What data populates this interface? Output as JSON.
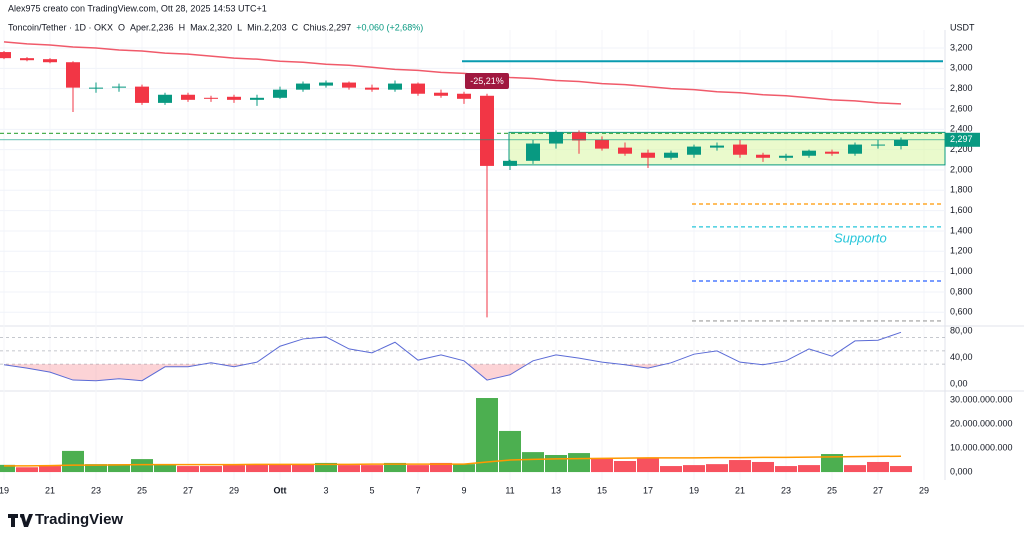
{
  "header": {
    "credit": "Alex975 creato con TradingView.com, Ott 28, 2025 14:53 UTC+1",
    "symbol": "Toncoin/Tether · 1D · OKX",
    "ohlc": [
      "O",
      "Aper.2,236",
      "H",
      "Max.2,320",
      "L",
      "Min.2,203",
      "C",
      "Chius.2,297"
    ],
    "change": "+0,060 (+2,68%)",
    "currency": "USDT",
    "brand": "TradingView"
  },
  "chart_data": [
    {
      "type": "candlestick",
      "categories": [
        "19",
        null,
        "21",
        null,
        "23",
        null,
        "25",
        null,
        "27",
        null,
        "29",
        null,
        "Ott",
        null,
        "3",
        null,
        "5",
        null,
        "7",
        null,
        "9",
        null,
        "11",
        null,
        "13",
        null,
        "15",
        null,
        "17",
        null,
        "19",
        null,
        "21",
        null,
        "23",
        null,
        "25",
        null,
        "27",
        null,
        "29"
      ],
      "open": [
        3.16,
        3.1,
        3.09,
        3.06,
        2.8,
        2.81,
        2.82,
        2.66,
        2.74,
        2.71,
        2.72,
        2.69,
        2.71,
        2.79,
        2.83,
        2.86,
        2.81,
        2.79,
        2.85,
        2.76,
        2.75,
        2.73,
        2.04,
        2.09,
        2.26,
        2.37,
        2.3,
        2.22,
        2.17,
        2.12,
        2.15,
        2.22,
        2.25,
        2.15,
        2.12,
        2.14,
        2.18,
        2.16,
        2.24,
        2.236,
        null
      ],
      "high": [
        3.17,
        3.11,
        3.1,
        3.07,
        2.86,
        2.85,
        2.84,
        2.76,
        2.76,
        2.73,
        2.74,
        2.74,
        2.82,
        2.87,
        2.88,
        2.87,
        2.84,
        2.88,
        2.86,
        2.79,
        2.77,
        2.75,
        2.1,
        2.3,
        2.39,
        2.39,
        2.33,
        2.27,
        2.2,
        2.19,
        2.25,
        2.27,
        2.3,
        2.17,
        2.16,
        2.2,
        2.2,
        2.27,
        2.3,
        2.32,
        null
      ],
      "low": [
        3.09,
        3.07,
        3.05,
        2.57,
        2.76,
        2.77,
        2.64,
        2.64,
        2.67,
        2.67,
        2.66,
        2.63,
        2.7,
        2.77,
        2.81,
        2.79,
        2.77,
        2.77,
        2.73,
        2.71,
        2.65,
        0.55,
        2.0,
        2.06,
        2.21,
        2.16,
        2.19,
        2.14,
        2.02,
        2.1,
        2.12,
        2.19,
        2.12,
        2.08,
        2.09,
        2.12,
        2.14,
        2.14,
        2.21,
        2.203,
        null
      ],
      "close": [
        3.1,
        3.08,
        3.06,
        2.81,
        2.81,
        2.82,
        2.66,
        2.74,
        2.69,
        2.7,
        2.69,
        2.71,
        2.79,
        2.85,
        2.86,
        2.81,
        2.79,
        2.85,
        2.75,
        2.73,
        2.7,
        2.04,
        2.09,
        2.26,
        2.37,
        2.29,
        2.21,
        2.16,
        2.12,
        2.17,
        2.23,
        2.24,
        2.15,
        2.12,
        2.14,
        2.19,
        2.16,
        2.25,
        2.25,
        2.297,
        null
      ],
      "up_color": "#089981",
      "down_color": "#f23645",
      "moving_average": {
        "color": "#f05a6a",
        "values": [
          3.26,
          3.24,
          3.23,
          3.21,
          3.2,
          3.18,
          3.17,
          3.15,
          3.14,
          3.12,
          3.1,
          3.09,
          3.07,
          3.06,
          3.04,
          3.03,
          3.01,
          2.99,
          2.98,
          2.96,
          2.95,
          2.93,
          2.91,
          2.9,
          2.88,
          2.87,
          2.85,
          2.84,
          2.82,
          2.8,
          2.79,
          2.77,
          2.76,
          2.74,
          2.73,
          2.71,
          2.69,
          2.68,
          2.66,
          2.65,
          null
        ]
      },
      "levels": [
        {
          "value": 3.07,
          "color": "#089bb0",
          "style": "solid"
        },
        {
          "value": 2.36,
          "color": "#4caf50",
          "style": "dashed"
        },
        {
          "value": 1.665,
          "color": "#ff9800",
          "style": "dashed"
        },
        {
          "value": 1.44,
          "color": "#26c6da",
          "style": "dashed"
        },
        {
          "value": 0.908,
          "color": "#2962ff",
          "style": "dashed"
        },
        {
          "value": 0.515,
          "color": "#9e9e9e",
          "style": "dashed"
        }
      ],
      "zone": {
        "low": 2.05,
        "high": 2.37,
        "color": "#d8f5a2"
      },
      "last_price": {
        "value": 2.297,
        "label": "2,297"
      },
      "annotations": [
        "-25,21%",
        "Supporto"
      ],
      "ylim": [
        0.475,
        3.377
      ],
      "yticks": [
        {
          "value": 3.2,
          "label": "3,200"
        },
        {
          "value": 3.0,
          "label": "3,000"
        },
        {
          "value": 2.8,
          "label": "2,800"
        },
        {
          "value": 2.6,
          "label": "2,600"
        },
        {
          "value": 2.4,
          "label": "2,400"
        },
        {
          "value": 2.2,
          "label": "2,200"
        },
        {
          "value": 2.0,
          "label": "2,000"
        },
        {
          "value": 1.8,
          "label": "1,800"
        },
        {
          "value": 1.6,
          "label": "1,600"
        },
        {
          "value": 1.4,
          "label": "1,400"
        },
        {
          "value": 1.2,
          "label": "1,200"
        },
        {
          "value": 1.0,
          "label": "1,000"
        },
        {
          "value": 0.8,
          "label": "0,800"
        },
        {
          "value": 0.6,
          "label": "0,600"
        }
      ],
      "grid": true
    },
    {
      "type": "line",
      "color": "#5b6bd6",
      "values": [
        29,
        24,
        18,
        6,
        5,
        8,
        5,
        26,
        26,
        32,
        26,
        33,
        57,
        68,
        71,
        53,
        47,
        63,
        36,
        44,
        35,
        6,
        14,
        35,
        44,
        39,
        33,
        29,
        24,
        32,
        45,
        50,
        33,
        29,
        35,
        53,
        42,
        65,
        66,
        78,
        null
      ],
      "bands": [
        70,
        50,
        30
      ],
      "oversold_color": "#f23645",
      "ylim": [
        -9,
        86
      ],
      "yticks": [
        {
          "value": 80,
          "label": "80,00"
        },
        {
          "value": 40,
          "label": "40,00"
        },
        {
          "value": 0,
          "label": "0,00"
        }
      ]
    },
    {
      "type": "bar",
      "values": [
        3000000000,
        2000000000,
        2500000000,
        8800000000,
        3300000000,
        3300000000,
        5400000000,
        3300000000,
        2500000000,
        2500000000,
        2900000000,
        3300000000,
        3300000000,
        3300000000,
        3800000000,
        2900000000,
        2900000000,
        3800000000,
        2900000000,
        3800000000,
        3300000000,
        30800000000,
        17100000000,
        8300000000,
        7100000000,
        7900000000,
        5800000000,
        4600000000,
        5800000000,
        2500000000,
        2900000000,
        3300000000,
        5000000000,
        4200000000,
        2500000000,
        2900000000,
        7500000000,
        2900000000,
        4200000000,
        2500000000,
        null
      ],
      "colors": [
        "#4caf50",
        "#f7525f",
        "#f7525f",
        "#4caf50",
        "#4caf50",
        "#4caf50",
        "#4caf50",
        "#4caf50",
        "#f7525f",
        "#f7525f",
        "#f7525f",
        "#f7525f",
        "#f7525f",
        "#f7525f",
        "#4caf50",
        "#f7525f",
        "#f7525f",
        "#4caf50",
        "#f7525f",
        "#f7525f",
        "#4caf50",
        "#4caf50",
        "#4caf50",
        "#4caf50",
        "#4caf50",
        "#4caf50",
        "#f7525f",
        "#f7525f",
        "#f7525f",
        "#f7525f",
        "#f7525f",
        "#f7525f",
        "#f7525f",
        "#f7525f",
        "#f7525f",
        "#f7525f",
        "#4caf50",
        "#f7525f",
        "#f7525f",
        "#f7525f",
        null
      ],
      "moving_average": {
        "color": "#ff9800",
        "values": [
          2600000000,
          2600000000,
          2700000000,
          2900000000,
          2900000000,
          3000000000,
          3100000000,
          3100000000,
          3100000000,
          3100000000,
          3100000000,
          3200000000,
          3200000000,
          3200000000,
          3200000000,
          3200000000,
          3300000000,
          3300000000,
          3300000000,
          3300000000,
          3300000000,
          4200000000,
          5000000000,
          5300000000,
          5500000000,
          5600000000,
          5700000000,
          5800000000,
          5900000000,
          5900000000,
          5900000000,
          6000000000,
          6000000000,
          6100000000,
          6100000000,
          6200000000,
          6300000000,
          6400000000,
          6500000000,
          6600000000,
          null
        ]
      },
      "ylim": [
        -3300000000,
        33300000000
      ],
      "yticks": [
        {
          "value": 30000000000,
          "label": "30.000.000.000"
        },
        {
          "value": 20000000000,
          "label": "20.000.000.000"
        },
        {
          "value": 10000000000,
          "label": "10.000.000.000"
        },
        {
          "value": 0,
          "label": "0,000"
        }
      ]
    }
  ]
}
